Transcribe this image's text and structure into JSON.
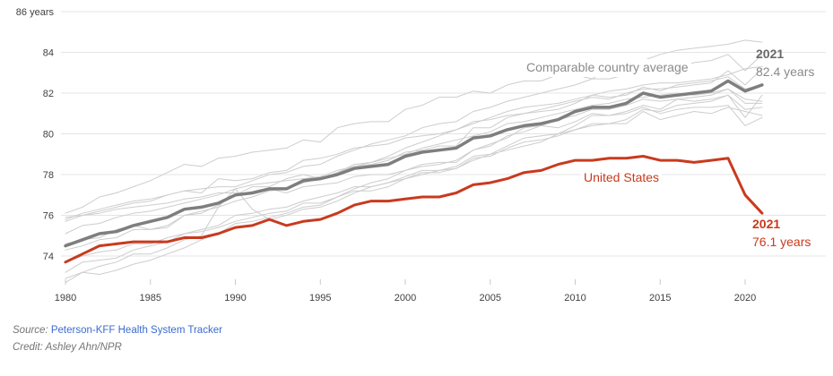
{
  "chart_data": {
    "type": "line",
    "unit": "years",
    "x": [
      1980,
      1981,
      1982,
      1983,
      1984,
      1985,
      1986,
      1987,
      1988,
      1989,
      1990,
      1991,
      1992,
      1993,
      1994,
      1995,
      1996,
      1997,
      1998,
      1999,
      2000,
      2001,
      2002,
      2003,
      2004,
      2005,
      2006,
      2007,
      2008,
      2009,
      2010,
      2011,
      2012,
      2013,
      2014,
      2015,
      2016,
      2017,
      2018,
      2019,
      2020,
      2021
    ],
    "xticks": [
      1980,
      1985,
      1990,
      1995,
      2000,
      2005,
      2010,
      2015,
      2020
    ],
    "yticks": [
      74,
      76,
      78,
      80,
      82,
      84,
      86
    ],
    "ytick_top_label": "86 years",
    "xlim": [
      1980,
      2021
    ],
    "ylim": [
      72.5,
      86
    ],
    "grid": "horizontal",
    "legend_position": "inline-annotations",
    "series": [
      {
        "id": "comparable-country-01",
        "role": "comparable-country",
        "color": "#cdcdcd",
        "width": 1,
        "values": [
          76.1,
          76.4,
          76.9,
          77.1,
          77.4,
          77.7,
          78.1,
          78.5,
          78.4,
          78.8,
          78.9,
          79.1,
          79.2,
          79.3,
          79.7,
          79.6,
          80.3,
          80.5,
          80.6,
          80.6,
          81.2,
          81.4,
          81.8,
          81.8,
          82.1,
          82.0,
          82.4,
          82.6,
          82.6,
          82.9,
          82.9,
          82.7,
          83.2,
          83.4,
          83.6,
          83.9,
          84.1,
          84.2,
          84.3,
          84.4,
          84.6,
          84.5
        ]
      },
      {
        "id": "comparable-country-02",
        "role": "comparable-country",
        "color": "#cdcdcd",
        "width": 1,
        "values": [
          75.7,
          76.0,
          76.2,
          76.4,
          76.6,
          76.7,
          77.0,
          77.2,
          77.3,
          77.4,
          77.4,
          77.7,
          78.0,
          78.1,
          78.4,
          78.5,
          78.9,
          79.2,
          79.5,
          79.7,
          79.9,
          80.3,
          80.5,
          80.6,
          81.1,
          81.3,
          81.6,
          81.8,
          82.0,
          82.2,
          82.4,
          82.7,
          82.7,
          82.9,
          83.2,
          83.0,
          83.2,
          83.5,
          83.6,
          83.9,
          83.1,
          83.9
        ]
      },
      {
        "id": "comparable-country-03",
        "role": "comparable-country",
        "color": "#cdcdcd",
        "width": 1,
        "values": [
          75.8,
          76.1,
          76.3,
          76.5,
          76.7,
          76.8,
          77.0,
          77.2,
          77.1,
          77.8,
          77.7,
          77.8,
          78.1,
          78.2,
          78.7,
          78.8,
          79.0,
          79.3,
          79.4,
          79.5,
          79.8,
          79.9,
          80.0,
          80.2,
          80.6,
          80.7,
          80.9,
          81.0,
          81.2,
          81.4,
          81.6,
          81.8,
          81.7,
          82.0,
          82.2,
          82.2,
          82.3,
          82.4,
          82.5,
          83.1,
          82.4,
          83.2
        ]
      },
      {
        "id": "comparable-country-04",
        "role": "comparable-country",
        "color": "#cdcdcd",
        "width": 1,
        "values": [
          74.6,
          74.8,
          74.9,
          75.3,
          75.5,
          75.3,
          75.4,
          76.0,
          76.1,
          76.5,
          77.0,
          77.4,
          77.4,
          77.8,
          78.0,
          77.8,
          78.1,
          78.5,
          78.6,
          78.9,
          79.3,
          79.6,
          79.9,
          80.2,
          80.5,
          80.8,
          81.1,
          81.3,
          81.4,
          81.5,
          81.7,
          81.9,
          82.1,
          82.2,
          82.4,
          82.5,
          82.5,
          82.6,
          82.7,
          82.9,
          83.2,
          83.3
        ]
      },
      {
        "id": "comparable-country-05",
        "role": "comparable-country",
        "color": "#cdcdcd",
        "width": 1,
        "values": [
          74.3,
          74.5,
          74.8,
          74.9,
          75.3,
          75.3,
          75.5,
          76.0,
          76.2,
          76.4,
          76.7,
          76.9,
          77.2,
          77.3,
          77.6,
          77.8,
          78.1,
          78.4,
          78.5,
          78.7,
          79.1,
          79.2,
          79.4,
          79.4,
          80.3,
          80.3,
          80.8,
          81.0,
          81.1,
          81.2,
          81.5,
          81.9,
          81.8,
          81.9,
          82.3,
          82.1,
          82.4,
          82.5,
          82.6,
          82.8,
          82.2,
          82.4
        ]
      },
      {
        "id": "comparable-country-06",
        "role": "comparable-country",
        "color": "#cdcdcd",
        "width": 1,
        "values": [
          75.1,
          75.5,
          75.6,
          75.9,
          76.1,
          76.2,
          76.4,
          76.6,
          76.8,
          77.0,
          77.3,
          77.5,
          77.6,
          77.7,
          77.8,
          77.9,
          78.2,
          78.4,
          78.6,
          78.8,
          79.0,
          79.3,
          79.5,
          79.7,
          79.9,
          80.1,
          80.5,
          80.6,
          80.8,
          81.0,
          81.2,
          81.4,
          81.5,
          81.7,
          81.8,
          81.9,
          82.0,
          81.9,
          82.0,
          82.2,
          81.7,
          81.6
        ]
      },
      {
        "id": "comparable-country-07",
        "role": "comparable-country",
        "color": "#cdcdcd",
        "width": 1,
        "values": [
          75.9,
          76.0,
          76.1,
          76.3,
          76.4,
          76.5,
          76.6,
          76.8,
          76.9,
          77.1,
          77.1,
          77.1,
          77.3,
          77.1,
          77.4,
          77.5,
          77.6,
          77.9,
          78.0,
          78.0,
          78.2,
          78.4,
          78.5,
          78.7,
          79.2,
          79.5,
          79.8,
          80.3,
          80.4,
          80.7,
          80.9,
          81.2,
          81.2,
          81.4,
          81.7,
          81.6,
          81.7,
          81.8,
          81.9,
          82.2,
          81.5,
          81.5
        ]
      },
      {
        "id": "comparable-country-08",
        "role": "comparable-country",
        "color": "#cdcdcd",
        "width": 1,
        "values": [
          73.2,
          73.7,
          73.8,
          73.9,
          74.3,
          74.5,
          74.7,
          75.1,
          75.3,
          75.5,
          76.0,
          76.1,
          76.3,
          76.4,
          76.7,
          76.9,
          77.1,
          77.4,
          77.4,
          77.6,
          77.8,
          78.1,
          78.1,
          78.3,
          78.8,
          78.9,
          79.3,
          79.6,
          79.7,
          79.9,
          80.2,
          80.5,
          80.5,
          80.7,
          81.2,
          81.1,
          81.4,
          81.5,
          81.6,
          81.9,
          80.8,
          81.9
        ]
      },
      {
        "id": "comparable-country-09",
        "role": "comparable-country",
        "color": "#cdcdcd",
        "width": 1,
        "values": [
          73.7,
          74.0,
          74.2,
          74.3,
          74.6,
          74.6,
          74.9,
          75.1,
          75.2,
          75.4,
          75.7,
          75.9,
          76.1,
          76.2,
          76.6,
          76.6,
          76.9,
          77.2,
          77.2,
          77.4,
          77.8,
          78.0,
          78.2,
          78.3,
          78.7,
          79.0,
          79.2,
          79.4,
          79.6,
          80.0,
          80.4,
          80.9,
          80.9,
          81.0,
          81.3,
          81.0,
          81.2,
          81.3,
          81.3,
          81.4,
          80.4,
          80.8
        ]
      },
      {
        "id": "comparable-country-10",
        "role": "comparable-country",
        "color": "#cdcdcd",
        "width": 1,
        "values": [
          72.7,
          73.2,
          73.1,
          73.3,
          73.6,
          73.8,
          74.1,
          74.4,
          74.8,
          75.1,
          75.6,
          75.7,
          75.9,
          76.1,
          76.4,
          76.5,
          76.9,
          77.3,
          77.6,
          77.8,
          78.2,
          78.5,
          78.6,
          78.6,
          79.2,
          79.4,
          79.9,
          80.1,
          80.4,
          80.3,
          80.6,
          81.0,
          80.9,
          81.1,
          81.4,
          81.2,
          81.7,
          81.6,
          81.7,
          81.9,
          81.2,
          81.3
        ]
      },
      {
        "id": "comparable-country-11",
        "role": "comparable-country",
        "color": "#cdcdcd",
        "width": 1,
        "values": [
          72.9,
          73.2,
          73.5,
          73.7,
          74.1,
          74.1,
          74.4,
          74.8,
          75.0,
          76.4,
          77.3,
          76.3,
          75.8,
          76.0,
          76.3,
          76.4,
          76.7,
          77.1,
          77.4,
          77.6,
          77.9,
          78.2,
          78.2,
          78.4,
          78.9,
          79.0,
          79.4,
          79.8,
          79.9,
          80.0,
          80.2,
          80.4,
          80.5,
          80.5,
          81.1,
          80.7,
          80.9,
          81.1,
          81.0,
          81.3,
          81.1,
          80.9
        ]
      },
      {
        "id": "comparable-country-average",
        "role": "average",
        "label": "Comparable country average",
        "color": "#7e7e7e",
        "width": 3.5,
        "values": [
          74.5,
          74.8,
          75.1,
          75.2,
          75.5,
          75.7,
          75.9,
          76.3,
          76.4,
          76.6,
          77.0,
          77.1,
          77.3,
          77.3,
          77.7,
          77.8,
          78.0,
          78.3,
          78.4,
          78.5,
          78.9,
          79.1,
          79.2,
          79.3,
          79.8,
          79.9,
          80.2,
          80.4,
          80.5,
          80.7,
          81.1,
          81.3,
          81.3,
          81.5,
          82.0,
          81.8,
          81.9,
          82.0,
          82.1,
          82.6,
          82.1,
          82.4
        ]
      },
      {
        "id": "united-states",
        "role": "united-states",
        "label": "United States",
        "color": "#c93a1e",
        "width": 3,
        "values": [
          73.7,
          74.1,
          74.5,
          74.6,
          74.7,
          74.7,
          74.7,
          74.9,
          74.9,
          75.1,
          75.4,
          75.5,
          75.8,
          75.5,
          75.7,
          75.8,
          76.1,
          76.5,
          76.7,
          76.7,
          76.8,
          76.9,
          76.9,
          77.1,
          77.5,
          77.6,
          77.8,
          78.1,
          78.2,
          78.5,
          78.7,
          78.7,
          78.8,
          78.8,
          78.9,
          78.7,
          78.7,
          78.6,
          78.7,
          78.8,
          77.0,
          76.1
        ]
      }
    ],
    "labels": {
      "average_label": "Comparable country average",
      "us_label": "United States",
      "average_end_year": "2021",
      "average_end_value": "82.4 years",
      "us_end_year": "2021",
      "us_end_value": "76.1 years"
    },
    "colors": {
      "us_line": "#c93a1e",
      "average_line": "#7e7e7e",
      "country_lines": "#cdcdcd",
      "gridline": "#e4e4e4",
      "tick": "#c9c9c9",
      "axis_text": "#404040",
      "annotation_gray": "#8a8a8a",
      "annotation_year_gray": "#696969"
    }
  },
  "footer": {
    "source_label": "Source:",
    "source_link_text": "Peterson-KFF Health System Tracker",
    "credit_text": "Credit: Ashley Ahn/NPR"
  }
}
